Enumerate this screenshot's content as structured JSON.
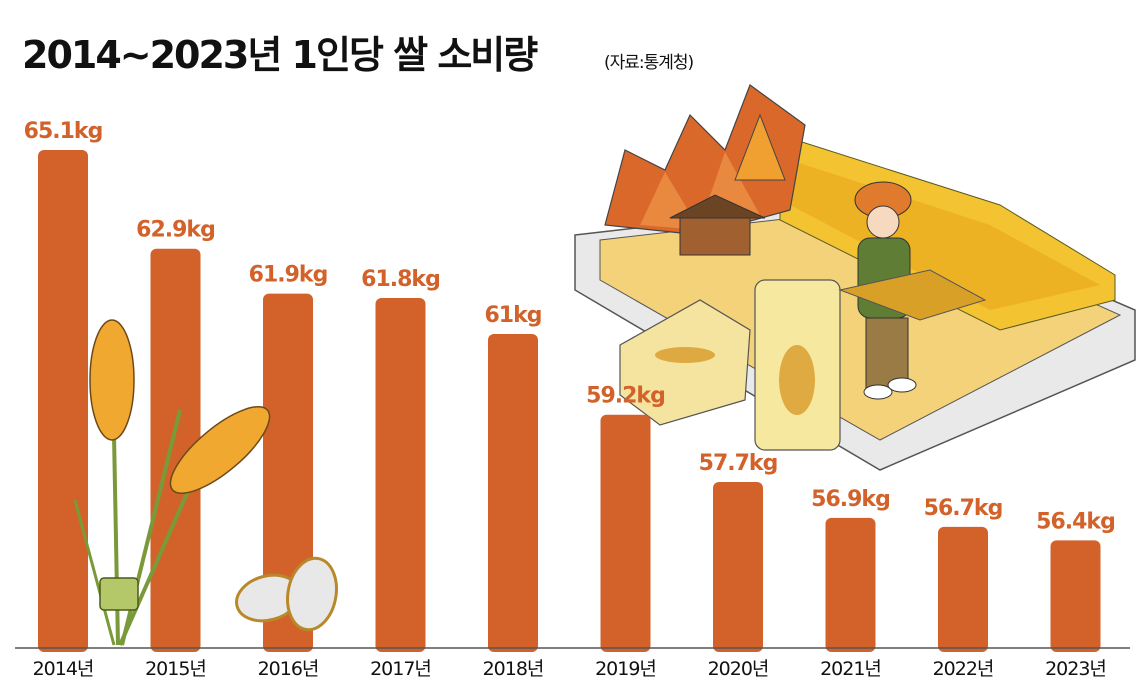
{
  "header": {
    "title": "2014~2023년 1인당 쌀 소비량",
    "source": "(자료:통계청)"
  },
  "colors": {
    "bar": "#d2622a",
    "label": "#d2622a",
    "text": "#111111"
  },
  "chart_data": {
    "type": "bar",
    "title": "2014~2023년 1인당 쌀 소비량",
    "categories": [
      "2014년",
      "2015년",
      "2016년",
      "2017년",
      "2018년",
      "2019년",
      "2020년",
      "2021년",
      "2022년",
      "2023년"
    ],
    "values": [
      65.1,
      62.9,
      61.9,
      61.8,
      61,
      59.2,
      57.7,
      56.9,
      56.7,
      56.4
    ],
    "value_labels": [
      "65.1kg",
      "62.9kg",
      "61.9kg",
      "61.8kg",
      "61kg",
      "59.2kg",
      "57.7kg",
      "56.9kg",
      "56.7kg",
      "56.4kg"
    ],
    "unit": "kg",
    "xlabel": "",
    "ylabel": "",
    "ylim": [
      54,
      65.1
    ],
    "grid": false,
    "legend": "none"
  },
  "illustrations": [
    "wheat-sheaf",
    "rice-grains",
    "farmer-harvest-on-smartphone"
  ]
}
